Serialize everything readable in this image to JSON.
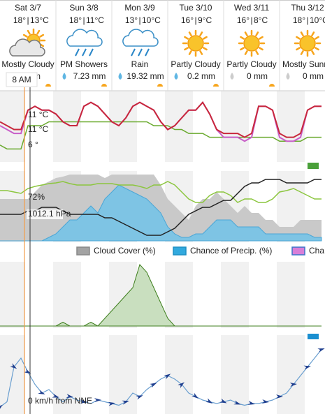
{
  "days": [
    {
      "name": "Sat 3/7",
      "high": "18°",
      "low": "13°C",
      "condition": "Mostly Cloudy",
      "precip": "mm"
    },
    {
      "name": "Sun 3/8",
      "high": "18°",
      "low": "11°C",
      "condition": "PM Showers",
      "precip": "7.23 mm"
    },
    {
      "name": "Mon 3/9",
      "high": "13°",
      "low": "10°C",
      "condition": "Rain",
      "precip": "19.32 mm"
    },
    {
      "name": "Tue 3/10",
      "high": "16°",
      "low": "9°C",
      "condition": "Partly Cloudy",
      "precip": "0.2 mm"
    },
    {
      "name": "Wed 3/11",
      "high": "16°",
      "low": "8°C",
      "condition": "Partly Cloudy",
      "precip": "0 mm"
    },
    {
      "name": "Thu 3/12",
      "high": "18°",
      "low": "10°C",
      "condition": "Mostly Sunny",
      "precip": "0 mm"
    }
  ],
  "now_label": "8 AM",
  "temperature": {
    "feels_like_label": "11 °C",
    "temperature_label": "11 °C",
    "dew_point_label": "6 °",
    "temperature": [
      13,
      12,
      11,
      11,
      16,
      17,
      16,
      16,
      15,
      13,
      12,
      12,
      17,
      18,
      17,
      15,
      13,
      12,
      14,
      17,
      18,
      17,
      16,
      13,
      11,
      12,
      14,
      16,
      16,
      18,
      15,
      11,
      10,
      10,
      10,
      9,
      10,
      17,
      17,
      16,
      10,
      9,
      9,
      10,
      16,
      17,
      17
    ],
    "feels_like": [
      12,
      11,
      10,
      10,
      16,
      17,
      16,
      16,
      15,
      13,
      12,
      12,
      17,
      18,
      17,
      15,
      13,
      12,
      14,
      17,
      18,
      17,
      16,
      13,
      11,
      12,
      14,
      16,
      16,
      18,
      15,
      11,
      9,
      9,
      9,
      8,
      9,
      17,
      17,
      16,
      9,
      8,
      8,
      9,
      16,
      17,
      17
    ],
    "dew_point": [
      7,
      6,
      6,
      6,
      12,
      12,
      12,
      13,
      13,
      13,
      13,
      13,
      13,
      13,
      13,
      13,
      13,
      13,
      13,
      13,
      13,
      13,
      12,
      12,
      12,
      11,
      11,
      10,
      10,
      10,
      9,
      9,
      9,
      9,
      9,
      9,
      9,
      9,
      9,
      9,
      8,
      8,
      8,
      8,
      9,
      9,
      9
    ]
  },
  "atmosphere": {
    "humidity_label": "72%",
    "pressure_label": "1012.1 hPa",
    "cloud_cover": [
      60,
      60,
      60,
      60,
      60,
      70,
      80,
      85,
      90,
      92,
      95,
      95,
      95,
      95,
      95,
      90,
      95,
      95,
      95,
      95,
      95,
      95,
      95,
      80,
      60,
      50,
      40,
      30,
      50,
      60,
      60,
      70,
      60,
      50,
      40,
      50,
      40,
      40,
      30,
      30,
      20,
      20,
      20,
      30,
      30,
      30,
      30
    ],
    "precip_chance": [
      0,
      0,
      0,
      0,
      0,
      0,
      0,
      5,
      10,
      20,
      30,
      30,
      40,
      50,
      40,
      60,
      70,
      80,
      75,
      70,
      65,
      60,
      50,
      40,
      20,
      10,
      5,
      5,
      10,
      10,
      20,
      30,
      30,
      30,
      20,
      20,
      20,
      20,
      10,
      10,
      10,
      10,
      10,
      10,
      10,
      5,
      5
    ],
    "humidity": [
      72,
      72,
      70,
      68,
      75,
      78,
      80,
      82,
      83,
      85,
      82,
      80,
      80,
      80,
      82,
      82,
      82,
      80,
      80,
      80,
      78,
      75,
      80,
      80,
      85,
      80,
      70,
      60,
      55,
      55,
      65,
      70,
      70,
      65,
      55,
      60,
      60,
      55,
      55,
      60,
      70,
      72,
      75,
      70,
      65,
      60,
      60
    ],
    "pressure": [
      1012,
      1012,
      1012,
      1012,
      1013,
      1013,
      1014,
      1014,
      1014,
      1013,
      1012,
      1012,
      1012,
      1012,
      1012,
      1011,
      1011,
      1010,
      1009,
      1008,
      1007,
      1006,
      1006,
      1006,
      1007,
      1008,
      1010,
      1012,
      1013,
      1014,
      1014,
      1015,
      1016,
      1016,
      1018,
      1020,
      1021,
      1021,
      1022,
      1022,
      1022,
      1021,
      1021,
      1021,
      1021,
      1022,
      1022
    ]
  },
  "legend": [
    "Cloud Cover (%)",
    "Chance of Precip. (%)",
    "Cha"
  ],
  "precipitation": [
    0,
    0,
    0,
    0,
    0,
    0,
    0,
    0,
    0,
    0.5,
    0,
    0,
    0,
    0.5,
    0,
    1,
    2,
    3,
    4,
    5,
    8,
    7,
    5,
    3,
    1,
    0,
    0,
    0,
    0,
    0,
    0,
    0,
    0,
    0,
    0,
    0,
    0,
    0,
    0,
    0,
    0,
    0,
    0,
    0,
    0,
    0,
    0
  ],
  "wind": {
    "label": "0 km/h from NNE",
    "speed": [
      2,
      5,
      25,
      30,
      22,
      15,
      10,
      12,
      8,
      5,
      8,
      6,
      5,
      4,
      6,
      5,
      4,
      3,
      5,
      10,
      8,
      12,
      15,
      18,
      20,
      18,
      15,
      10,
      8,
      6,
      5,
      4,
      5,
      6,
      4,
      3,
      4,
      4,
      5,
      6,
      8,
      10,
      15,
      20,
      25,
      30,
      35
    ]
  }
}
